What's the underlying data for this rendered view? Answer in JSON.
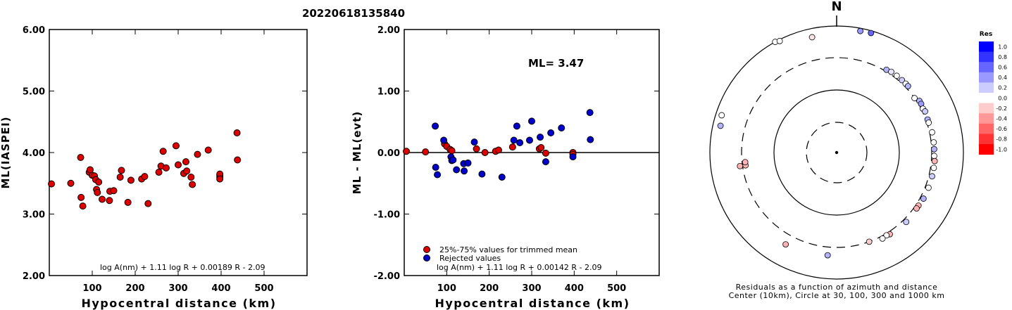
{
  "chart_data": [
    {
      "type": "scatter",
      "title": "20220618135840",
      "xlabel": "Hypocentral distance (km)",
      "ylabel": "ML(IASPEI)",
      "xlim": [
        0,
        600
      ],
      "ylim": [
        2.0,
        6.0
      ],
      "x_ticks": [
        "100",
        "200",
        "300",
        "400",
        "500"
      ],
      "y_ticks": [
        "2.00",
        "3.00",
        "4.00",
        "5.00",
        "6.00"
      ],
      "formula": "log A(nm) + 1.11 log R + 0.00189 R - 2.09",
      "color": "#dd0000",
      "points": [
        [
          5,
          3.49
        ],
        [
          50,
          3.5
        ],
        [
          73,
          3.92
        ],
        [
          74,
          3.27
        ],
        [
          78,
          3.13
        ],
        [
          93,
          3.68
        ],
        [
          95,
          3.72
        ],
        [
          100,
          3.63
        ],
        [
          105,
          3.62
        ],
        [
          108,
          3.56
        ],
        [
          110,
          3.4
        ],
        [
          112,
          3.35
        ],
        [
          115,
          3.52
        ],
        [
          123,
          3.24
        ],
        [
          140,
          3.22
        ],
        [
          141,
          3.37
        ],
        [
          150,
          3.38
        ],
        [
          165,
          3.6
        ],
        [
          168,
          3.71
        ],
        [
          183,
          3.19
        ],
        [
          190,
          3.55
        ],
        [
          215,
          3.57
        ],
        [
          222,
          3.61
        ],
        [
          230,
          3.17
        ],
        [
          255,
          3.68
        ],
        [
          260,
          3.78
        ],
        [
          265,
          4.02
        ],
        [
          272,
          3.75
        ],
        [
          295,
          4.11
        ],
        [
          300,
          3.8
        ],
        [
          313,
          3.66
        ],
        [
          318,
          3.85
        ],
        [
          320,
          3.7
        ],
        [
          330,
          3.6
        ],
        [
          333,
          3.48
        ],
        [
          345,
          3.97
        ],
        [
          370,
          4.04
        ],
        [
          397,
          3.6
        ],
        [
          397,
          3.63
        ],
        [
          397,
          3.65
        ],
        [
          397,
          3.57
        ],
        [
          437,
          4.32
        ],
        [
          438,
          3.88
        ]
      ]
    },
    {
      "type": "scatter",
      "xlabel": "Hypocentral distance (km)",
      "ylabel": "ML - ML(evt)",
      "xlim": [
        0,
        600
      ],
      "ylim": [
        -2.0,
        2.0
      ],
      "x_ticks": [
        "100",
        "200",
        "300",
        "400",
        "500"
      ],
      "y_ticks": [
        "-2.00",
        "-1.00",
        "0.00",
        "1.00",
        "2.00"
      ],
      "ml_label": "ML= 3.47",
      "legend": [
        "25%-75% values for trimmed mean",
        "Rejected values"
      ],
      "legend_colors": [
        "#dd0000",
        "#0000cc"
      ],
      "formula": "log A(nm) + 1.11 log R + 0.00142 R - 2.09",
      "series": [
        {
          "name": "25%-75% values for trimmed mean",
          "points": [
            [
              5,
              0.02
            ],
            [
              50,
              0.01
            ],
            [
              95,
              0.14
            ],
            [
              100,
              0.1
            ],
            [
              108,
              0.05
            ],
            [
              112,
              0.03
            ],
            [
              170,
              0.06
            ],
            [
              190,
              0.0
            ],
            [
              215,
              0.02
            ],
            [
              222,
              0.04
            ],
            [
              255,
              0.09
            ],
            [
              318,
              0.06
            ],
            [
              322,
              0.08
            ],
            [
              333,
              -0.01
            ],
            [
              397,
              0.0
            ],
            [
              397,
              -0.03
            ]
          ]
        },
        {
          "name": "Rejected values",
          "points": [
            [
              73,
              0.43
            ],
            [
              74,
              -0.24
            ],
            [
              78,
              -0.36
            ],
            [
              93,
              0.2
            ],
            [
              110,
              -0.07
            ],
            [
              112,
              -0.13
            ],
            [
              115,
              -0.12
            ],
            [
              123,
              -0.28
            ],
            [
              140,
              -0.18
            ],
            [
              141,
              -0.3
            ],
            [
              150,
              -0.17
            ],
            [
              165,
              0.17
            ],
            [
              183,
              -0.35
            ],
            [
              230,
              -0.4
            ],
            [
              258,
              0.2
            ],
            [
              265,
              0.43
            ],
            [
              272,
              0.16
            ],
            [
              300,
              0.51
            ],
            [
              295,
              0.2
            ],
            [
              320,
              0.25
            ],
            [
              333,
              -0.15
            ],
            [
              345,
              0.32
            ],
            [
              370,
              0.4
            ],
            [
              397,
              -0.07
            ],
            [
              437,
              0.65
            ],
            [
              438,
              0.21
            ]
          ]
        }
      ]
    },
    {
      "type": "scatter",
      "subtype": "polar",
      "north_label": "N",
      "caption": [
        "Residuals as a function of azimuth and distance",
        "Center (10km), Circle at 30, 100, 300 and 1000 km"
      ],
      "colorbar": {
        "title": "Res",
        "labels": [
          "1.0",
          "0.8",
          "0.6",
          "0.4",
          "0.2",
          "0.0",
          "-0.2",
          "-0.4",
          "-0.6",
          "-0.8",
          "-1.0"
        ],
        "colors": [
          "#0000ff",
          "#3333ff",
          "#6666ff",
          "#9999ff",
          "#ccccff",
          "#ffffff",
          "#ffcccc",
          "#ff9999",
          "#ff6666",
          "#ff3333",
          "#ff0000"
        ]
      },
      "rings_km": [
        30,
        100,
        300,
        1000
      ],
      "points": [
        [
          331,
          1000,
          0.0
        ],
        [
          333,
          950,
          0.0
        ],
        [
          348,
          720,
          -0.1
        ],
        [
          11,
          900,
          0.4
        ],
        [
          16,
          920,
          0.6
        ],
        [
          31,
          320,
          0.3
        ],
        [
          34,
          330,
          0.1
        ],
        [
          38,
          330,
          0.0
        ],
        [
          42,
          330,
          0.2
        ],
        [
          45,
          330,
          0.0
        ],
        [
          47,
          330,
          0.3
        ],
        [
          55,
          300,
          0.0
        ],
        [
          58,
          330,
          0.3
        ],
        [
          60,
          330,
          0.4
        ],
        [
          63,
          320,
          0.0
        ],
        [
          65,
          330,
          0.2
        ],
        [
          70,
          320,
          0.3
        ],
        [
          72,
          320,
          0.0
        ],
        [
          78,
          330,
          0.0
        ],
        [
          84,
          330,
          0.0
        ],
        [
          88,
          330,
          0.3
        ],
        [
          92,
          330,
          0.0
        ],
        [
          95,
          340,
          -0.3
        ],
        [
          99,
          340,
          0.0
        ],
        [
          104,
          340,
          0.2
        ],
        [
          111,
          340,
          0.0
        ],
        [
          118,
          340,
          0.3
        ],
        [
          123,
          330,
          -0.3
        ],
        [
          125,
          330,
          -0.3
        ],
        [
          135,
          340,
          0.2
        ],
        [
          147,
          330,
          -0.3
        ],
        [
          149,
          320,
          0.0
        ],
        [
          152,
          330,
          0.0
        ],
        [
          160,
          300,
          -0.2
        ],
        [
          185,
          410,
          0.3
        ],
        [
          209,
          440,
          -0.3
        ],
        [
          262,
          270,
          -0.3
        ],
        [
          264,
          270,
          -0.3
        ],
        [
          262,
          330,
          -0.3
        ],
        [
          283,
          750,
          0.3
        ],
        [
          288,
          800,
          0.0
        ]
      ]
    }
  ]
}
